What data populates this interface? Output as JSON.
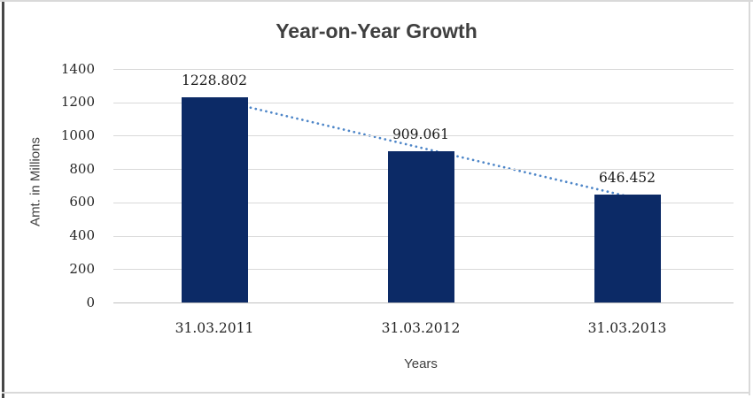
{
  "chart": {
    "colors": {
      "bar": "#0c2a66",
      "trendline": "#4e86c8",
      "gridline": "#d9d9d9",
      "baseline": "#bfbfbf",
      "title_text": "#3f3f3f",
      "tick_text": "#262626"
    }
  },
  "chart_data": {
    "type": "bar",
    "title": "Year-on-Year Growth",
    "categories": [
      "31.03.2011",
      "31.03.2012",
      "31.03.2013"
    ],
    "values": [
      1228.802,
      909.061,
      646.452
    ],
    "data_labels": [
      "1228.802",
      "909.061",
      "646.452"
    ],
    "xlabel": "Years",
    "ylabel": "Amt. in Millions",
    "ylim": [
      0,
      1400
    ],
    "ytick_step": 200,
    "ytick_labels": [
      "0",
      "200",
      "400",
      "600",
      "800",
      "1000",
      "1200",
      "1400"
    ],
    "grid": true,
    "legend": "none",
    "trendline": {
      "type": "linear",
      "style": "dotted"
    }
  }
}
